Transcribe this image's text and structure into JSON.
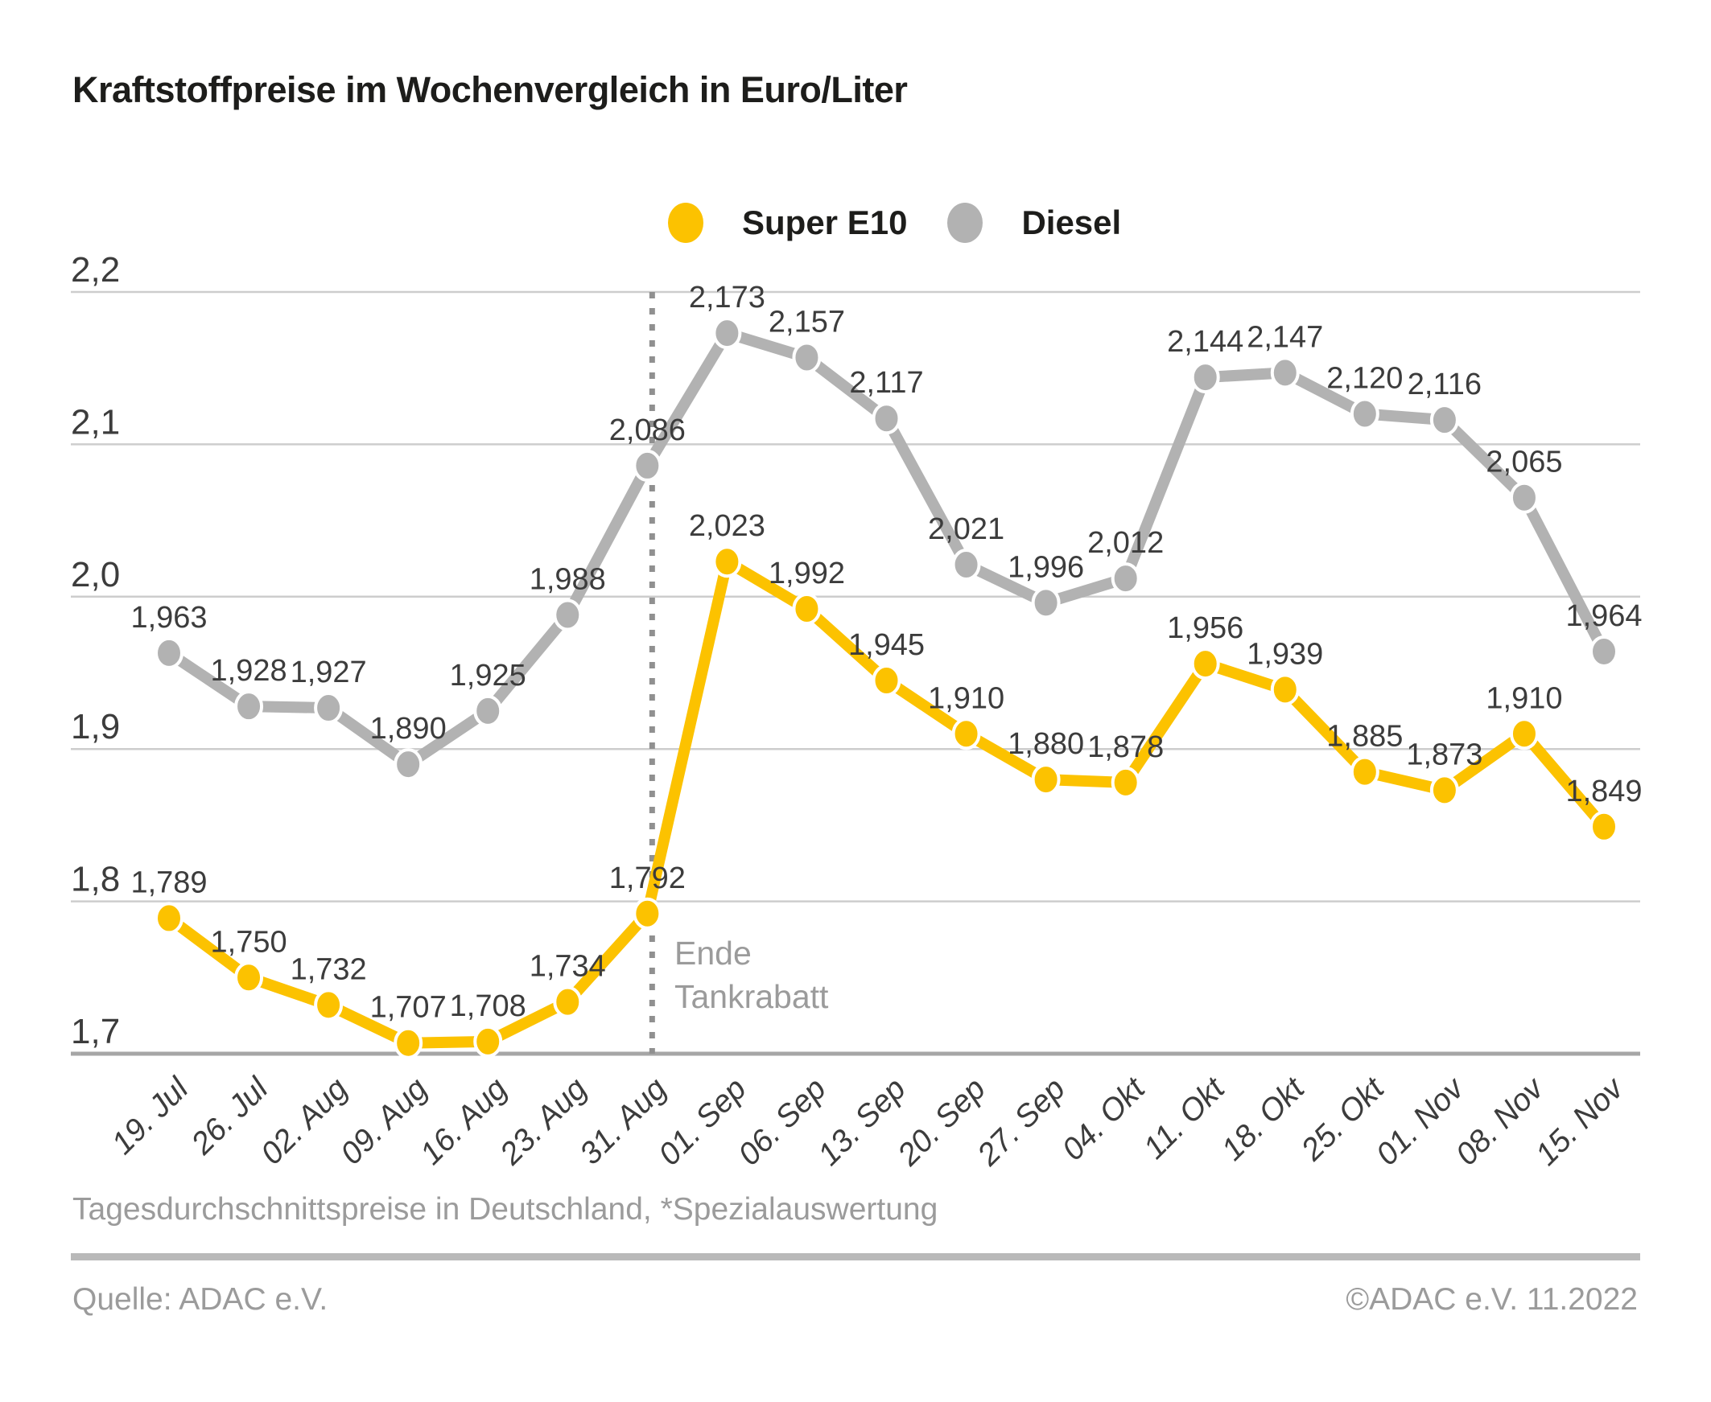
{
  "title": "Kraftstoffpreise im Wochenvergleich in Euro/Liter",
  "legend": [
    {
      "label": "Super E10",
      "color": "#fcc200"
    },
    {
      "label": "Diesel",
      "color": "#b2b2b2"
    }
  ],
  "annotation": {
    "line1": "Ende",
    "line2": "Tankrabatt"
  },
  "footnote": "Tagesdurchschnittspreise in Deutschland, *Spezialauswertung",
  "source": "Quelle: ADAC e.V.",
  "copyright": "©ADAC e.V.  11.2022",
  "colors": {
    "e10": "#fcc200",
    "diesel": "#b2b2b2",
    "grid": "#cdcdcd",
    "axis": "#a6a6a6",
    "vline": "#909090",
    "data_label": "#3c3c3c",
    "tick_label": "#3c3c3c",
    "muted": "#9b9b9b",
    "title": "#1d1d1b"
  },
  "chart_data": {
    "type": "line",
    "title": "Kraftstoffpreise im Wochenvergleich in Euro/Liter",
    "unit": "Euro/Liter",
    "grid": true,
    "legend_position": "top-center",
    "ylim": [
      1.7,
      2.2
    ],
    "y_ticks": [
      {
        "label": "2,2",
        "value": 2.2
      },
      {
        "label": "2,1",
        "value": 2.1
      },
      {
        "label": "2,0",
        "value": 2.0
      },
      {
        "label": "1,9",
        "value": 1.9
      },
      {
        "label": "1,8",
        "value": 1.8
      },
      {
        "label": "1,7",
        "value": 1.7
      }
    ],
    "categories": [
      "19. Jul",
      "26. Jul",
      "02. Aug",
      "09. Aug",
      "16. Aug",
      "23. Aug",
      "31. Aug",
      "01. Sep",
      "06. Sep",
      "13. Sep",
      "20. Sep",
      "27. Sep",
      "04. Okt",
      "11. Okt",
      "18. Okt",
      "25. Okt",
      "01. Nov",
      "08. Nov",
      "15. Nov"
    ],
    "series": [
      {
        "name": "Diesel",
        "color": "#b2b2b2",
        "values": [
          1.963,
          1.928,
          1.927,
          1.89,
          1.925,
          1.988,
          2.086,
          2.173,
          2.157,
          2.117,
          2.021,
          1.996,
          2.012,
          2.144,
          2.147,
          2.12,
          2.116,
          2.065,
          1.964
        ],
        "labels": [
          "1,963",
          "1,928",
          "1,927",
          "1,890",
          "1,925",
          "1,988",
          "2,086",
          "2,173",
          "2,157",
          "2,117",
          "2,021",
          "1,996",
          "2,012",
          "2,144",
          "2,147",
          "2,120",
          "2,116",
          "2,065",
          "1,964"
        ]
      },
      {
        "name": "Super E10",
        "color": "#fcc200",
        "values": [
          1.789,
          1.75,
          1.732,
          1.707,
          1.708,
          1.734,
          1.792,
          2.023,
          1.992,
          1.945,
          1.91,
          1.88,
          1.878,
          1.956,
          1.939,
          1.885,
          1.873,
          1.91,
          1.849
        ],
        "labels": [
          "1,789",
          "1,750",
          "1,732",
          "1,707",
          "1,708",
          "1,734",
          "1,792",
          "2,023",
          "1,992",
          "1,945",
          "1,910",
          "1,880",
          "1,878",
          "1,956",
          "1,939",
          "1,885",
          "1,873",
          "1,910",
          "1,849"
        ]
      }
    ],
    "vline": {
      "category": "31. Aug",
      "style": "dotted",
      "label": "Ende Tankrabatt"
    }
  }
}
